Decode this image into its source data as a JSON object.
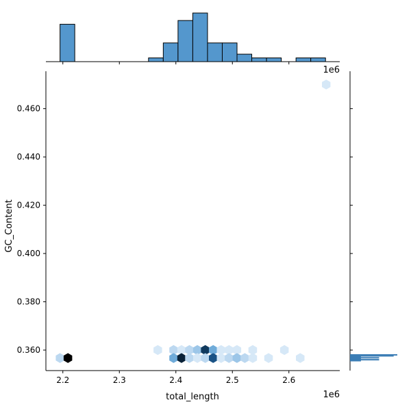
{
  "chart_data": {
    "type": "jointplot-hexbin",
    "xlabel": "total_length",
    "ylabel": "GC_Content",
    "x_offset_label": "1e6",
    "top_offset_label": "1e6",
    "xlim": [
      2.17,
      2.69
    ],
    "ylim": [
      0.3515,
      0.4755
    ],
    "x_ticks": [
      2.2,
      2.3,
      2.4,
      2.5,
      2.6
    ],
    "x_tick_labels": [
      "2.2",
      "2.3",
      "2.4",
      "2.5",
      "2.6"
    ],
    "y_ticks": [
      0.36,
      0.38,
      0.4,
      0.42,
      0.44,
      0.46
    ],
    "y_tick_labels": [
      "0.360",
      "0.380",
      "0.400",
      "0.420",
      "0.440",
      "0.460"
    ],
    "colors": {
      "hex_light": "#d6e8f7",
      "hex_dark": "#000000",
      "hist_fill": "#5497cd",
      "hist_edge": "#000000"
    },
    "hexbin": [
      {
        "x": 2.195,
        "y": 0.3567,
        "count": 2
      },
      {
        "x": 2.209,
        "y": 0.3567,
        "count": 10
      },
      {
        "x": 2.368,
        "y": 0.36,
        "count": 1
      },
      {
        "x": 2.396,
        "y": 0.36,
        "count": 2
      },
      {
        "x": 2.396,
        "y": 0.3567,
        "count": 4
      },
      {
        "x": 2.41,
        "y": 0.36,
        "count": 1
      },
      {
        "x": 2.41,
        "y": 0.3567,
        "count": 9
      },
      {
        "x": 2.424,
        "y": 0.36,
        "count": 2
      },
      {
        "x": 2.424,
        "y": 0.3567,
        "count": 2
      },
      {
        "x": 2.438,
        "y": 0.36,
        "count": 3
      },
      {
        "x": 2.438,
        "y": 0.3567,
        "count": 1
      },
      {
        "x": 2.452,
        "y": 0.36,
        "count": 8
      },
      {
        "x": 2.452,
        "y": 0.3567,
        "count": 2
      },
      {
        "x": 2.466,
        "y": 0.36,
        "count": 4
      },
      {
        "x": 2.466,
        "y": 0.3567,
        "count": 7
      },
      {
        "x": 2.48,
        "y": 0.36,
        "count": 1
      },
      {
        "x": 2.48,
        "y": 0.3567,
        "count": 1
      },
      {
        "x": 2.494,
        "y": 0.36,
        "count": 1
      },
      {
        "x": 2.494,
        "y": 0.3567,
        "count": 2
      },
      {
        "x": 2.508,
        "y": 0.36,
        "count": 1
      },
      {
        "x": 2.508,
        "y": 0.3567,
        "count": 3
      },
      {
        "x": 2.522,
        "y": 0.3567,
        "count": 2
      },
      {
        "x": 2.536,
        "y": 0.36,
        "count": 1
      },
      {
        "x": 2.536,
        "y": 0.3567,
        "count": 1
      },
      {
        "x": 2.564,
        "y": 0.3567,
        "count": 1
      },
      {
        "x": 2.592,
        "y": 0.36,
        "count": 1
      },
      {
        "x": 2.62,
        "y": 0.3567,
        "count": 1
      },
      {
        "x": 2.666,
        "y": 0.47,
        "count": 1
      }
    ],
    "hexbin_max_count": 10,
    "x_hist": {
      "bin_start": 2.195,
      "bin_width": 0.0261,
      "counts": [
        10,
        0,
        0,
        0,
        0,
        0,
        1,
        5,
        11,
        13,
        5,
        5,
        2,
        1,
        1,
        0,
        1,
        1
      ]
    },
    "y_hist": [
      {
        "y": 0.358,
        "len": 13
      },
      {
        "y": 0.3576,
        "len": 12
      },
      {
        "y": 0.3572,
        "len": 3
      },
      {
        "y": 0.3568,
        "len": 8
      },
      {
        "y": 0.3564,
        "len": 3
      },
      {
        "y": 0.356,
        "len": 8
      },
      {
        "y": 0.3556,
        "len": 3
      }
    ],
    "y_hist_max_len": 13
  }
}
